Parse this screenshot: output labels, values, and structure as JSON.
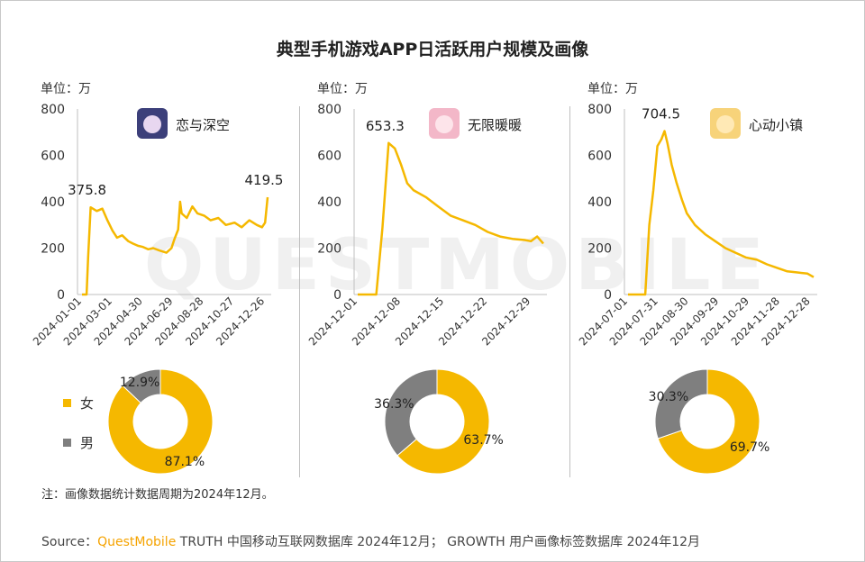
{
  "title": "典型手机游戏APP日活跃用户规模及画像",
  "watermark": "QUESTMOBILE",
  "note": "注：画像数据统计数据周期为2024年12月。",
  "source": {
    "prefix": "Source：",
    "brand": "QuestMobile",
    "rest": " TRUTH 中国移动互联网数据库 2024年12月； GROWTH 用户画像标签数据库 2024年12月"
  },
  "legend": {
    "female": "女",
    "male": "男",
    "female_color": "#f5b800",
    "male_color": "#7f7f7f"
  },
  "colors": {
    "line": "#f5b800",
    "female": "#f5b800",
    "male": "#7f7f7f",
    "axis": "#bfbfbf"
  },
  "chart_data": [
    {
      "type": "line",
      "app_name": "恋与深空",
      "icon": "game-character-icon",
      "unit_label": "单位：万",
      "ylim": [
        0,
        800
      ],
      "yticks": [
        "0",
        "200",
        "400",
        "600",
        "800"
      ],
      "xticks": [
        "2024-01-01",
        "2024-03-01",
        "2024-04-30",
        "2024-06-29",
        "2024-08-28",
        "2024-10-27",
        "2024-12-26"
      ],
      "annotations": [
        {
          "label": "375.8",
          "x": "2024-01-18",
          "y": 375.8
        },
        {
          "label": "419.5",
          "x": "2024-12-31",
          "y": 419.5
        }
      ],
      "series": [
        {
          "x": [
            "2024-01-01",
            "2024-01-10",
            "2024-01-13",
            "2024-01-18",
            "2024-01-30",
            "2024-02-10",
            "2024-02-20",
            "2024-03-01",
            "2024-03-10",
            "2024-03-20",
            "2024-04-01",
            "2024-04-10",
            "2024-04-20",
            "2024-04-30",
            "2024-05-10",
            "2024-05-20",
            "2024-06-01",
            "2024-06-15",
            "2024-06-25",
            "2024-07-01",
            "2024-07-08",
            "2024-07-12",
            "2024-07-15",
            "2024-07-25",
            "2024-08-05",
            "2024-08-15",
            "2024-08-28",
            "2024-09-10",
            "2024-09-25",
            "2024-10-10",
            "2024-10-27",
            "2024-11-10",
            "2024-11-25",
            "2024-12-10",
            "2024-12-20",
            "2024-12-26",
            "2024-12-31"
          ],
          "values": [
            0,
            0,
            160,
            375.8,
            360,
            370,
            320,
            275,
            245,
            255,
            230,
            220,
            210,
            205,
            195,
            200,
            190,
            180,
            200,
            240,
            280,
            400,
            350,
            330,
            380,
            350,
            340,
            320,
            330,
            300,
            310,
            290,
            320,
            300,
            290,
            310,
            419.5
          ]
        }
      ],
      "gender": {
        "female_pct": 87.1,
        "male_pct": 12.9,
        "female_label": "87.1%",
        "male_label": "12.9%"
      }
    },
    {
      "type": "line",
      "app_name": "无限暖暖",
      "icon": "game-character-icon",
      "unit_label": "单位：万",
      "ylim": [
        0,
        800
      ],
      "yticks": [
        "0",
        "200",
        "400",
        "600",
        "800"
      ],
      "xticks": [
        "2024-12-01",
        "2024-12-08",
        "2024-12-15",
        "2024-12-22",
        "2024-12-29"
      ],
      "annotations": [
        {
          "label": "653.3",
          "x": "2024-12-06",
          "y": 653.3
        }
      ],
      "series": [
        {
          "x": [
            "2024-12-01",
            "2024-12-04",
            "2024-12-05",
            "2024-12-06",
            "2024-12-07",
            "2024-12-08",
            "2024-12-09",
            "2024-12-10",
            "2024-12-12",
            "2024-12-14",
            "2024-12-16",
            "2024-12-18",
            "2024-12-20",
            "2024-12-22",
            "2024-12-24",
            "2024-12-26",
            "2024-12-28",
            "2024-12-29",
            "2024-12-30",
            "2024-12-31"
          ],
          "values": [
            0,
            0,
            290,
            653.3,
            630,
            560,
            480,
            450,
            420,
            380,
            340,
            320,
            300,
            270,
            250,
            240,
            235,
            230,
            250,
            220
          ]
        }
      ],
      "gender": {
        "female_pct": 63.7,
        "male_pct": 36.3,
        "female_label": "63.7%",
        "male_label": "36.3%"
      }
    },
    {
      "type": "line",
      "app_name": "心动小镇",
      "icon": "game-character-icon",
      "unit_label": "单位：万",
      "ylim": [
        0,
        800
      ],
      "yticks": [
        "0",
        "200",
        "400",
        "600",
        "800"
      ],
      "xticks": [
        "2024-07-01",
        "2024-07-31",
        "2024-08-30",
        "2024-09-29",
        "2024-10-29",
        "2024-11-28",
        "2024-12-28"
      ],
      "annotations": [
        {
          "label": "704.5",
          "x": "2024-08-06",
          "y": 704.5
        }
      ],
      "series": [
        {
          "x": [
            "2024-07-01",
            "2024-07-14",
            "2024-07-18",
            "2024-07-22",
            "2024-07-26",
            "2024-07-30",
            "2024-08-03",
            "2024-08-06",
            "2024-08-09",
            "2024-08-13",
            "2024-08-18",
            "2024-08-23",
            "2024-08-28",
            "2024-09-05",
            "2024-09-15",
            "2024-09-25",
            "2024-10-05",
            "2024-10-15",
            "2024-10-25",
            "2024-11-05",
            "2024-11-15",
            "2024-11-25",
            "2024-12-05",
            "2024-12-15",
            "2024-12-25",
            "2024-12-31"
          ],
          "values": [
            0,
            0,
            0,
            300,
            450,
            640,
            670,
            704.5,
            650,
            560,
            480,
            410,
            350,
            300,
            260,
            230,
            200,
            180,
            160,
            150,
            130,
            115,
            100,
            95,
            90,
            75
          ]
        }
      ],
      "gender": {
        "female_pct": 69.7,
        "male_pct": 30.3,
        "female_label": "69.7%",
        "male_label": "30.3%"
      }
    }
  ]
}
